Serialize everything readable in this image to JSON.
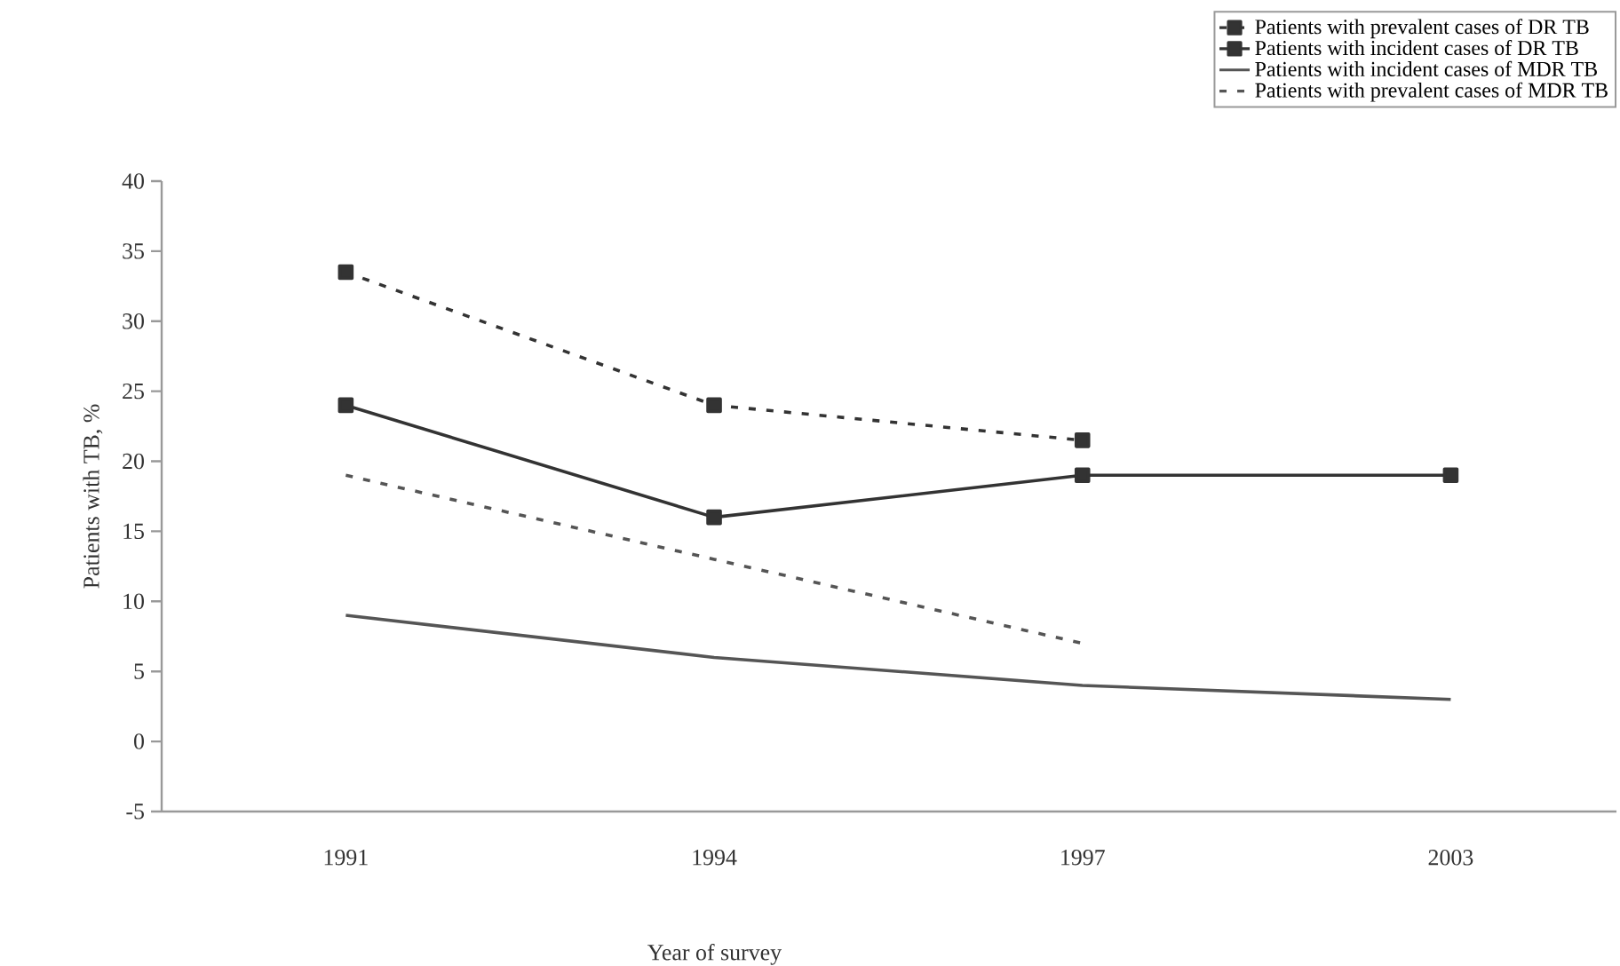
{
  "chart_data": {
    "type": "line",
    "xlabel": "Year of survey",
    "ylabel": "Patients with TB, %",
    "categories": [
      "1991",
      "1994",
      "1997",
      "2003"
    ],
    "series": [
      {
        "name": "Patients with prevalent cases of DR TB",
        "color": "#333333",
        "marker": "square",
        "line_style": "dotted",
        "values": [
          33.5,
          24,
          21.5,
          null
        ]
      },
      {
        "name": "Patients with incident cases of DR TB",
        "color": "#333333",
        "marker": "square",
        "line_style": "solid",
        "values": [
          24,
          16,
          19,
          19
        ]
      },
      {
        "name": "Patients with incident cases of MDR TB",
        "color": "#555555",
        "marker": "none",
        "line_style": "solid",
        "values": [
          9,
          6,
          4,
          3
        ]
      },
      {
        "name": "Patients with prevalent cases of MDR TB",
        "color": "#555555",
        "marker": "none",
        "line_style": "dotted",
        "values": [
          19,
          13,
          7,
          null
        ]
      }
    ],
    "ylim": [
      -5,
      40
    ],
    "yticks": [
      -5,
      0,
      5,
      10,
      15,
      20,
      25,
      30,
      35,
      40
    ],
    "grid": false,
    "legend": "top right"
  }
}
